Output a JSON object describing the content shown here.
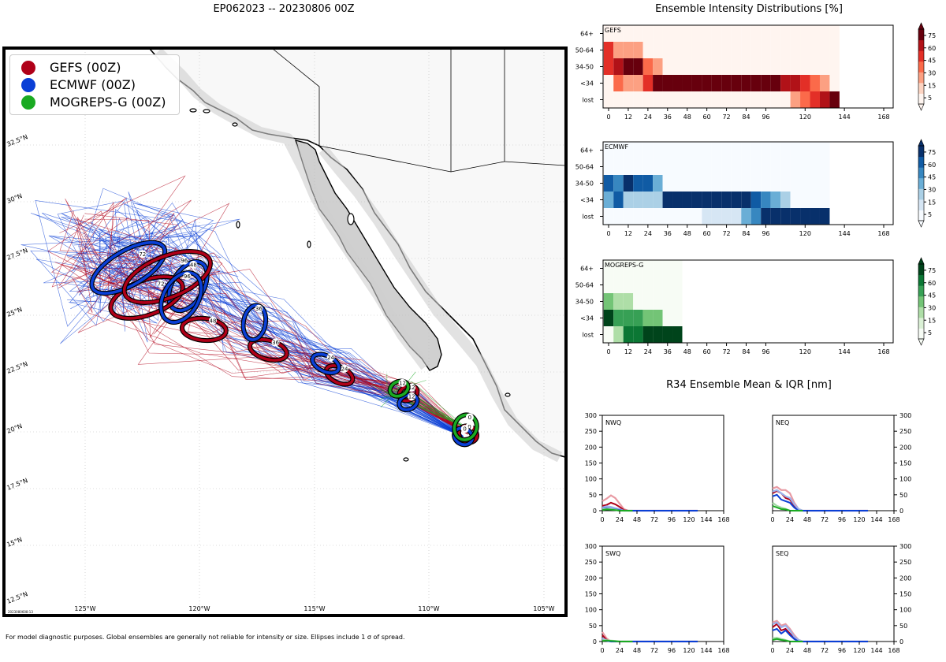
{
  "map": {
    "title": "EP062023 -- 20230806 00Z",
    "stamp": "2023080608:13",
    "legend": [
      {
        "label": "GEFS (00Z)",
        "color": "#b00018"
      },
      {
        "label": "ECMWF (00Z)",
        "color": "#0a3fd6"
      },
      {
        "label": "MOGREPS-G (00Z)",
        "color": "#1aaa22"
      }
    ],
    "lon_ticks": [
      "125°W",
      "120°W",
      "115°W",
      "110°W",
      "105°W"
    ],
    "lat_ticks": [
      "32.5°N",
      "30°N",
      "27.5°N",
      "25°N",
      "22.5°N",
      "20°N",
      "17.5°N",
      "15°N",
      "12.5°N"
    ],
    "footnote": "For model diagnostic purposes. Global ensembles are generally not reliable for intensity or size. Ellipses include 1 σ of spread.",
    "ellipses": [
      {
        "model": "GEFS",
        "hour": "0",
        "lon": -108.3,
        "lat": 19.9
      },
      {
        "model": "ECMWF",
        "hour": "0",
        "lon": -108.5,
        "lat": 19.8
      },
      {
        "model": "MOGREPS-G",
        "hour": "0",
        "lon": -108.4,
        "lat": 20.2
      },
      {
        "model": "GEFS",
        "hour": "12",
        "lon": -110.9,
        "lat": 21.7
      },
      {
        "model": "ECMWF",
        "hour": "12",
        "lon": -110.9,
        "lat": 21.3
      },
      {
        "model": "MOGREPS-G",
        "hour": "12",
        "lon": -111.3,
        "lat": 21.9
      },
      {
        "model": "GEFS",
        "hour": "24",
        "lon": -113.9,
        "lat": 22.5
      },
      {
        "model": "ECMWF",
        "hour": "24",
        "lon": -114.5,
        "lat": 23.0
      },
      {
        "model": "GEFS",
        "hour": "36",
        "lon": -117.0,
        "lat": 23.6
      },
      {
        "model": "ECMWF",
        "hour": "36",
        "lon": -117.6,
        "lat": 24.8
      },
      {
        "model": "GEFS",
        "hour": "48",
        "lon": -119.8,
        "lat": 24.5
      },
      {
        "model": "ECMWF",
        "hour": "48",
        "lon": -120.5,
        "lat": 26.4
      },
      {
        "model": "GEFS",
        "hour": "72",
        "lon": -122.3,
        "lat": 25.9
      },
      {
        "model": "ECMWF",
        "hour": "72",
        "lon": -123.1,
        "lat": 27.2
      },
      {
        "model": "GEFS",
        "hour": "96",
        "lon": -121.4,
        "lat": 26.8
      },
      {
        "model": "ECMWF",
        "hour": "96",
        "lon": -120.8,
        "lat": 25.9
      }
    ]
  },
  "chart_data": [
    {
      "type": "heatmap",
      "title": "Ensemble Intensity Distributions [%]",
      "panel": "GEFS",
      "colormap": "Reds",
      "rows": [
        "64+",
        "50-64",
        "34-50",
        "<34",
        "lost"
      ],
      "x": [
        0,
        6,
        12,
        18,
        24,
        30,
        36,
        42,
        48,
        54,
        60,
        66,
        72,
        78,
        84,
        90,
        96,
        102,
        108,
        114,
        120,
        126,
        132,
        138
      ],
      "xticks": [
        0,
        12,
        24,
        36,
        48,
        60,
        72,
        84,
        96,
        120,
        144,
        168
      ],
      "colorbar_ticks": [
        5,
        15,
        30,
        45,
        60,
        75
      ],
      "values": [
        [
          2,
          2,
          2,
          2,
          2,
          2,
          2,
          2,
          2,
          2,
          2,
          2,
          2,
          2,
          2,
          2,
          2,
          2,
          2,
          2,
          2,
          2,
          2,
          2
        ],
        [
          45,
          15,
          15,
          15,
          2,
          2,
          2,
          2,
          2,
          2,
          2,
          2,
          2,
          2,
          2,
          2,
          2,
          2,
          2,
          2,
          2,
          2,
          2,
          2
        ],
        [
          55,
          65,
          90,
          85,
          40,
          20,
          2,
          2,
          2,
          2,
          2,
          2,
          2,
          2,
          2,
          2,
          2,
          2,
          2,
          2,
          2,
          2,
          2,
          2
        ],
        [
          2,
          35,
          15,
          15,
          45,
          95,
          95,
          95,
          95,
          95,
          95,
          95,
          95,
          95,
          95,
          95,
          95,
          95,
          65,
          60,
          55,
          40,
          25,
          2
        ],
        [
          2,
          2,
          2,
          2,
          2,
          2,
          2,
          2,
          2,
          2,
          2,
          2,
          2,
          2,
          2,
          2,
          2,
          2,
          2,
          25,
          35,
          45,
          60,
          95
        ]
      ]
    },
    {
      "type": "heatmap",
      "panel": "ECMWF",
      "colormap": "Blues",
      "rows": [
        "64+",
        "50-64",
        "34-50",
        "<34",
        "lost"
      ],
      "x": [
        0,
        6,
        12,
        18,
        24,
        30,
        36,
        42,
        48,
        54,
        60,
        66,
        72,
        78,
        84,
        90,
        96,
        102,
        108,
        114,
        120,
        126,
        132
      ],
      "xticks": [
        0,
        12,
        24,
        36,
        48,
        60,
        72,
        84,
        96,
        120,
        144,
        168
      ],
      "colorbar_ticks": [
        5,
        15,
        30,
        45,
        60,
        75
      ],
      "values": [
        [
          2,
          2,
          2,
          2,
          2,
          2,
          2,
          2,
          2,
          2,
          2,
          2,
          2,
          2,
          2,
          2,
          2,
          2,
          2,
          2,
          2,
          2,
          2
        ],
        [
          2,
          2,
          2,
          2,
          2,
          2,
          2,
          2,
          2,
          2,
          2,
          2,
          2,
          2,
          2,
          2,
          2,
          2,
          2,
          2,
          2,
          2,
          2
        ],
        [
          65,
          45,
          95,
          70,
          70,
          30,
          2,
          2,
          2,
          2,
          2,
          2,
          2,
          2,
          2,
          2,
          2,
          2,
          2,
          2,
          2,
          2,
          2
        ],
        [
          30,
          60,
          25,
          25,
          25,
          25,
          95,
          95,
          95,
          95,
          95,
          95,
          95,
          95,
          85,
          65,
          50,
          30,
          20,
          2,
          2,
          2,
          2
        ],
        [
          2,
          2,
          2,
          2,
          2,
          2,
          2,
          2,
          2,
          2,
          12,
          12,
          12,
          12,
          35,
          55,
          75,
          95,
          95,
          95,
          95,
          95,
          95
        ]
      ]
    },
    {
      "type": "heatmap",
      "panel": "MOGREPS-G",
      "colormap": "Greens",
      "rows": [
        "64+",
        "50-64",
        "34-50",
        "<34",
        "lost"
      ],
      "x": [
        0,
        6,
        12,
        18,
        24,
        30,
        36,
        42
      ],
      "xticks": [
        0,
        12,
        24,
        36,
        48,
        60,
        72,
        84,
        96,
        120,
        144,
        168
      ],
      "colorbar_ticks": [
        5,
        15,
        30,
        45,
        60,
        75
      ],
      "values": [
        [
          2,
          2,
          2,
          2,
          2,
          2,
          2,
          2
        ],
        [
          2,
          2,
          2,
          2,
          2,
          2,
          2,
          2
        ],
        [
          30,
          15,
          15,
          2,
          2,
          2,
          2,
          2
        ],
        [
          95,
          55,
          45,
          45,
          35,
          35,
          2,
          2
        ],
        [
          2,
          20,
          60,
          60,
          75,
          95,
          95,
          95
        ]
      ]
    },
    {
      "type": "line",
      "title": "R34 Ensemble Mean & IQR [nm]",
      "panels": [
        {
          "name": "NWQ",
          "x": [
            0,
            6,
            12,
            18,
            24,
            30,
            36,
            42,
            48,
            60,
            72,
            84,
            96,
            108,
            120,
            132
          ],
          "series": [
            {
              "model": "GEFS",
              "mean": [
                15,
                18,
                25,
                20,
                12,
                2,
                0,
                0,
                0,
                0,
                0,
                0,
                0,
                0,
                0,
                0
              ],
              "q75": [
                30,
                38,
                48,
                40,
                22,
                5,
                0,
                0,
                0,
                0,
                0,
                0,
                0,
                0,
                0,
                0
              ]
            },
            {
              "model": "ECMWF",
              "mean": [
                5,
                8,
                6,
                4,
                2,
                0,
                0,
                0,
                0,
                0,
                0,
                0,
                0,
                0,
                0,
                0
              ],
              "q75": [
                10,
                14,
                12,
                8,
                5,
                0,
                0,
                0,
                0,
                0,
                0,
                0,
                0,
                0,
                0,
                0
              ]
            },
            {
              "model": "MOGREPS-G",
              "mean": [
                2,
                4,
                3,
                2,
                0,
                0,
                0,
                0
              ],
              "q75": [
                4,
                6,
                5,
                3,
                0,
                0,
                0,
                0
              ]
            }
          ]
        },
        {
          "name": "NEQ",
          "x": [
            0,
            6,
            12,
            18,
            24,
            30,
            36,
            42,
            48,
            60,
            72,
            84,
            96,
            108,
            120,
            132
          ],
          "series": [
            {
              "model": "GEFS",
              "mean": [
                55,
                62,
                55,
                40,
                35,
                15,
                0,
                0,
                0,
                0,
                0,
                0,
                0,
                0,
                0,
                0
              ],
              "q75": [
                70,
                75,
                65,
                65,
                55,
                25,
                5,
                0,
                0,
                0,
                0,
                0,
                0,
                0,
                0,
                0
              ]
            },
            {
              "model": "ECMWF",
              "mean": [
                45,
                50,
                35,
                30,
                25,
                10,
                0,
                0,
                0,
                0,
                0,
                0,
                0,
                0,
                0,
                0
              ],
              "q75": [
                60,
                65,
                55,
                45,
                40,
                20,
                5,
                0,
                0,
                0,
                0,
                0,
                0,
                0,
                0,
                0
              ]
            },
            {
              "model": "MOGREPS-G",
              "mean": [
                15,
                10,
                5,
                4,
                0,
                0,
                0,
                0
              ],
              "q75": [
                25,
                15,
                10,
                6,
                0,
                0,
                0,
                0
              ]
            }
          ]
        },
        {
          "name": "SWQ",
          "x": [
            0,
            6,
            12,
            18,
            24,
            30,
            36,
            42,
            48,
            60,
            72,
            84,
            96,
            108,
            120,
            132
          ],
          "series": [
            {
              "model": "GEFS",
              "mean": [
                20,
                5,
                0,
                0,
                0,
                0,
                0,
                0,
                0,
                0,
                0,
                0,
                0,
                0,
                0,
                0
              ],
              "q75": [
                30,
                10,
                0,
                0,
                0,
                0,
                0,
                0,
                0,
                0,
                0,
                0,
                0,
                0,
                0,
                0
              ]
            },
            {
              "model": "ECMWF",
              "mean": [
                5,
                2,
                0,
                0,
                0,
                0,
                0,
                0,
                0,
                0,
                0,
                0,
                0,
                0,
                0,
                0
              ],
              "q75": [
                10,
                4,
                0,
                0,
                0,
                0,
                0,
                0,
                0,
                0,
                0,
                0,
                0,
                0,
                0,
                0
              ]
            },
            {
              "model": "MOGREPS-G",
              "mean": [
                2,
                3,
                2,
                1,
                0,
                0,
                0,
                0
              ],
              "q75": [
                4,
                4,
                3,
                2,
                0,
                0,
                0,
                0
              ]
            }
          ]
        },
        {
          "name": "SEQ",
          "x": [
            0,
            6,
            12,
            18,
            24,
            30,
            36,
            42,
            48,
            60,
            72,
            84,
            96,
            108,
            120,
            132
          ],
          "series": [
            {
              "model": "GEFS",
              "mean": [
                45,
                55,
                35,
                40,
                25,
                10,
                0,
                0,
                0,
                0,
                0,
                0,
                0,
                0,
                0,
                0
              ],
              "q75": [
                60,
                65,
                50,
                55,
                40,
                20,
                5,
                0,
                0,
                0,
                0,
                0,
                0,
                0,
                0,
                0
              ]
            },
            {
              "model": "ECMWF",
              "mean": [
                35,
                40,
                25,
                35,
                20,
                8,
                0,
                0,
                0,
                0,
                0,
                0,
                0,
                0,
                0,
                0
              ],
              "q75": [
                55,
                60,
                45,
                50,
                35,
                15,
                5,
                0,
                0,
                0,
                0,
                0,
                0,
                0,
                0,
                0
              ]
            },
            {
              "model": "MOGREPS-G",
              "mean": [
                5,
                8,
                5,
                3,
                0,
                0,
                0,
                0
              ],
              "q75": [
                10,
                12,
                8,
                5,
                0,
                0,
                0,
                0
              ]
            }
          ]
        }
      ],
      "xticks": [
        0,
        24,
        48,
        72,
        96,
        120,
        144,
        168
      ],
      "yticks": [
        0,
        50,
        100,
        150,
        200,
        250,
        300
      ],
      "ylim": [
        0,
        300
      ],
      "xlim": [
        0,
        168
      ]
    }
  ]
}
